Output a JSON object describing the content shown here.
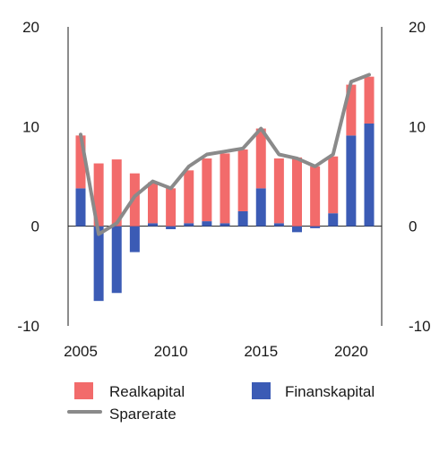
{
  "chart_data": {
    "type": "bar",
    "stacked": true,
    "x": [
      2005,
      2006,
      2007,
      2008,
      2009,
      2010,
      2011,
      2012,
      2013,
      2014,
      2015,
      2016,
      2017,
      2018,
      2019,
      2020,
      2021
    ],
    "x_ticks": [
      "2005",
      "2010",
      "2015",
      "2020"
    ],
    "ylim": [
      -10,
      20
    ],
    "y_ticks": [
      "-10",
      "0",
      "10",
      "20"
    ],
    "y_ticks_right": [
      "-10",
      "0",
      "10",
      "20"
    ],
    "grid": false,
    "legend_position": "bottom",
    "series": [
      {
        "name": "Realkapital",
        "type": "bar",
        "color": "#f26b6b",
        "values": [
          5.3,
          6.3,
          6.7,
          5.3,
          4.1,
          3.8,
          5.3,
          6.3,
          7.0,
          6.2,
          6.0,
          6.5,
          6.9,
          6.0,
          5.7,
          5.1,
          4.7
        ]
      },
      {
        "name": "Finanskapital",
        "type": "bar",
        "color": "#3b5bb5",
        "values": [
          3.8,
          -7.5,
          -6.7,
          -2.6,
          0.3,
          -0.3,
          0.3,
          0.5,
          0.3,
          1.5,
          3.8,
          0.3,
          -0.6,
          -0.2,
          1.3,
          9.1,
          10.3
        ]
      },
      {
        "name": "Sparerate",
        "type": "line",
        "color": "#8a8a8a",
        "values": [
          9.2,
          -0.8,
          0.3,
          3.0,
          4.5,
          3.8,
          6.0,
          7.2,
          7.5,
          7.8,
          9.8,
          7.2,
          6.8,
          6.0,
          7.2,
          14.5,
          15.2
        ]
      }
    ]
  }
}
